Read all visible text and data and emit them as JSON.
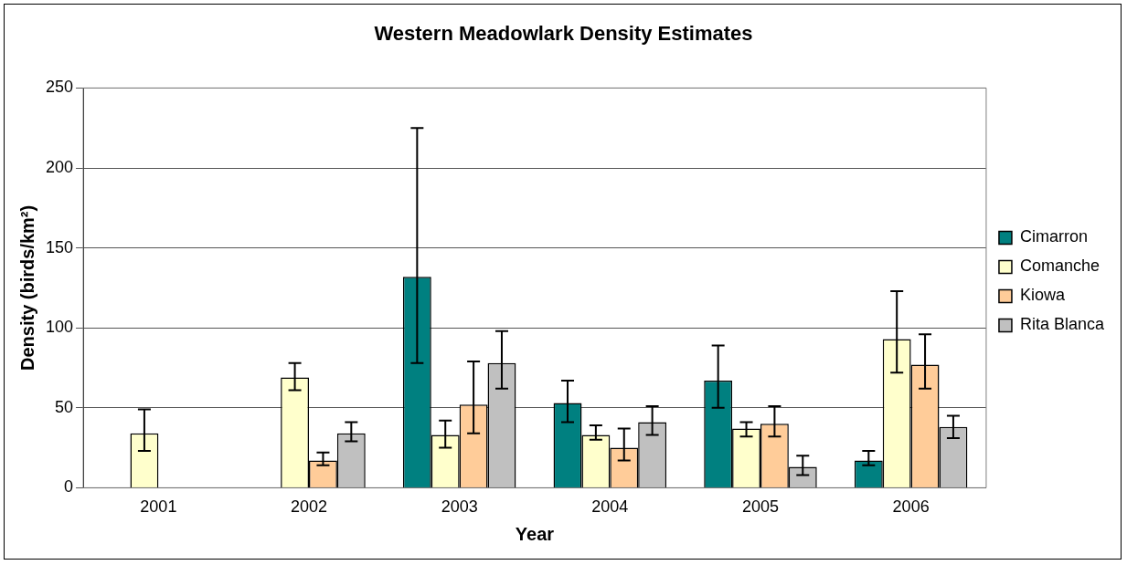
{
  "chart_data": {
    "type": "bar",
    "title": "Western Meadowlark Density Estimates",
    "xlabel": "Year",
    "ylabel": "Density (birds/km²)",
    "categories": [
      "2001",
      "2002",
      "2003",
      "2004",
      "2005",
      "2006"
    ],
    "series": [
      {
        "name": "Cimarron",
        "color": "#008080",
        "values": [
          null,
          null,
          132,
          53,
          67,
          17
        ],
        "errors": [
          null,
          null,
          [
            78,
            225
          ],
          [
            41,
            67
          ],
          [
            50,
            89
          ],
          [
            14,
            23
          ]
        ]
      },
      {
        "name": "Comanche",
        "color": "#ffffcc",
        "values": [
          34,
          69,
          33,
          33,
          37,
          93
        ],
        "errors": [
          [
            23,
            49
          ],
          [
            61,
            78
          ],
          [
            25,
            42
          ],
          [
            30,
            39
          ],
          [
            32,
            41
          ],
          [
            72,
            123
          ]
        ]
      },
      {
        "name": "Kiowa",
        "color": "#ffcc99",
        "values": [
          null,
          17,
          52,
          25,
          40,
          77
        ],
        "errors": [
          null,
          [
            14,
            22
          ],
          [
            34,
            79
          ],
          [
            17,
            37
          ],
          [
            32,
            51
          ],
          [
            62,
            96
          ]
        ]
      },
      {
        "name": "Rita Blanca",
        "color": "#c0c0c0",
        "values": [
          null,
          34,
          78,
          41,
          13,
          38
        ],
        "errors": [
          null,
          [
            29,
            41
          ],
          [
            62,
            98
          ],
          [
            33,
            51
          ],
          [
            8,
            20
          ],
          [
            31,
            45
          ]
        ]
      }
    ],
    "ylim": [
      0,
      250
    ],
    "yticks": [
      0,
      50,
      100,
      150,
      200,
      250
    ],
    "grid": "y",
    "legend": "right"
  }
}
